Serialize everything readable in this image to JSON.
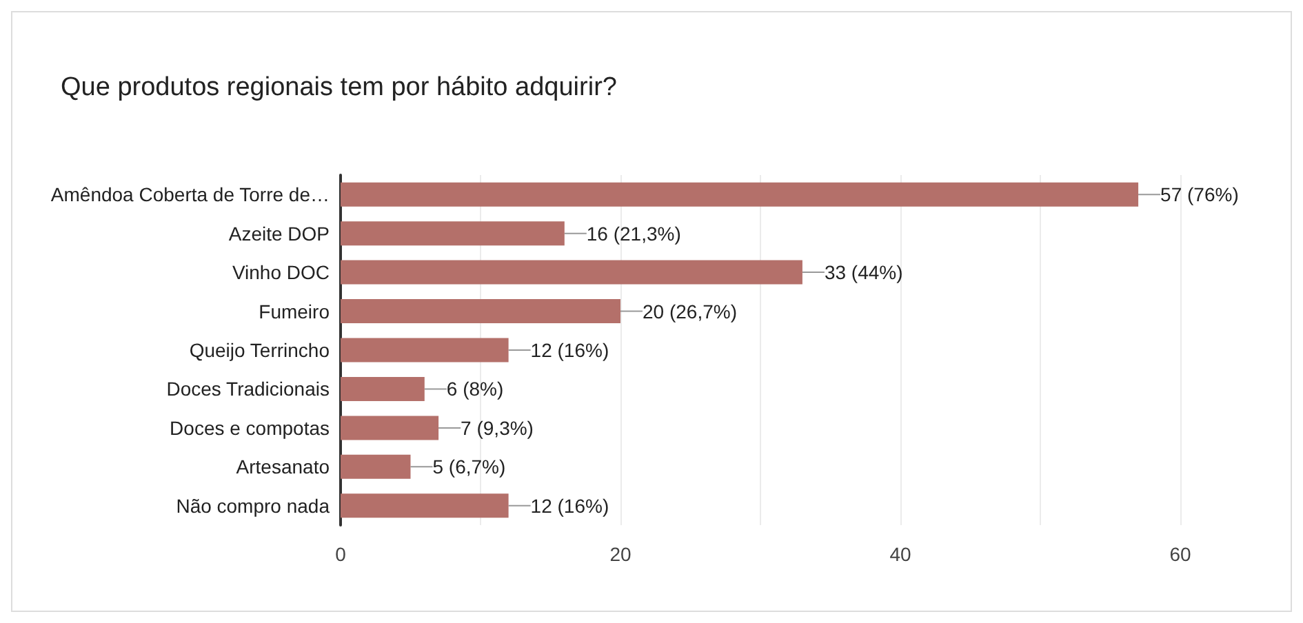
{
  "chart_data": {
    "type": "bar",
    "orientation": "horizontal",
    "title": "Que produtos regionais tem por hábito adquirir?",
    "categories": [
      "Amêndoa Coberta de Torre de…",
      "Azeite DOP",
      "Vinho DOC",
      "Fumeiro",
      "Queijo Terrincho",
      "Doces Tradicionais",
      "Doces e compotas",
      "Artesanato",
      "Não compro nada"
    ],
    "values": [
      57,
      16,
      33,
      20,
      12,
      6,
      7,
      5,
      12
    ],
    "value_labels": [
      "57 (76%)",
      "16 (21,3%)",
      "33 (44%)",
      "20 (26,7%)",
      "12 (16%)",
      "6 (8%)",
      "7 (9,3%)",
      "5 (6,7%)",
      "12 (16%)"
    ],
    "color": "#b4706a",
    "xlim": [
      0,
      60
    ],
    "xticks": [
      0,
      {
        "value": 10,
        "label": null
      },
      20,
      {
        "value": 30,
        "label": null
      },
      40,
      {
        "value": 50,
        "label": null
      },
      60
    ],
    "grid": "x"
  }
}
